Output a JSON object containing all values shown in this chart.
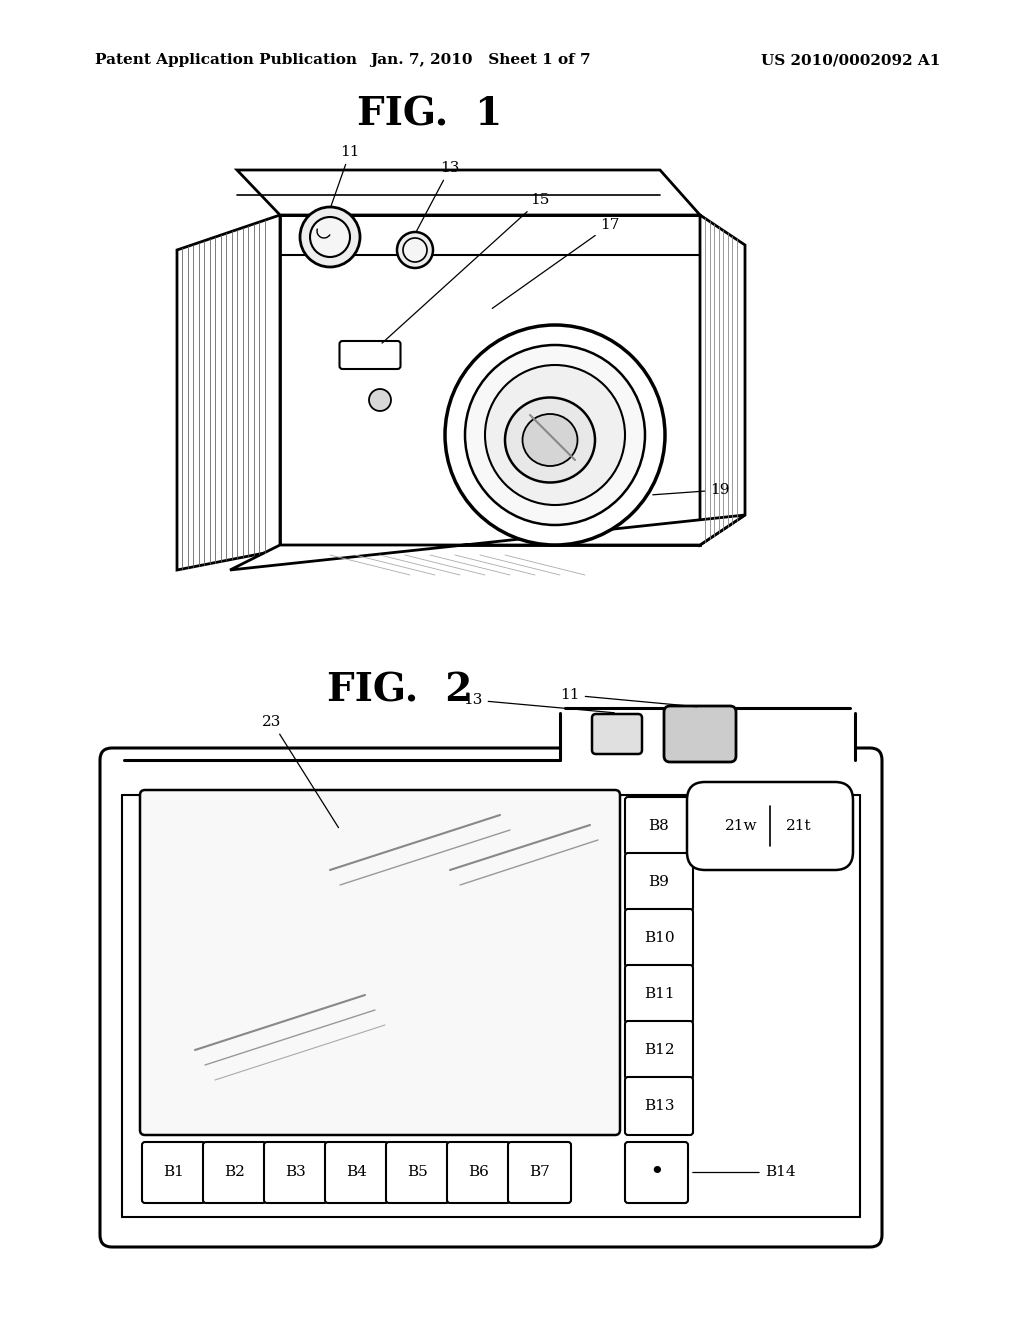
{
  "bg_color": "#ffffff",
  "line_color": "#000000",
  "header_left": "Patent Application Publication",
  "header_center": "Jan. 7, 2010   Sheet 1 of 7",
  "header_right": "US 2010/0002092 A1",
  "fig1_label": "FIG.  1",
  "fig2_label": "FIG.  2",
  "fig1_ref_numbers": [
    "11",
    "13",
    "15",
    "17",
    "19"
  ],
  "fig2_right_buttons": [
    "B8",
    "B9",
    "B10",
    "B11",
    "B12",
    "B13"
  ],
  "fig2_bottom_buttons": [
    "B1",
    "B2",
    "B3",
    "B4",
    "B5",
    "B6",
    "B7"
  ],
  "zoom_labels": [
    "21w",
    "21t"
  ]
}
